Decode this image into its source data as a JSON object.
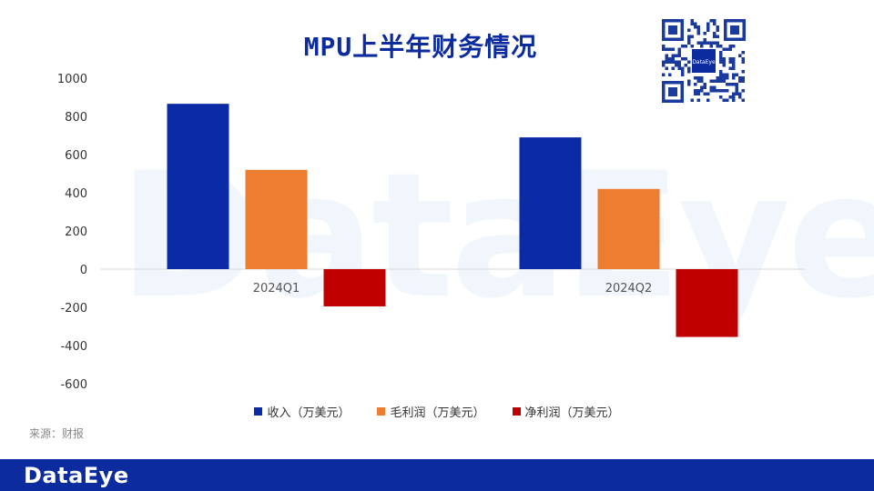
{
  "page": {
    "title": "MPU上半年财务情况",
    "source": "来源：财报",
    "brand": "DataEye",
    "qr_label": "DataEye"
  },
  "colors": {
    "revenue": "#0b2aa6",
    "gross_profit": "#ed7d31",
    "net_profit": "#c00000",
    "brand": "#0b2b9e"
  },
  "chart_data": {
    "type": "bar",
    "title": "MPU上半年财务情况",
    "categories": [
      "2024Q1",
      "2024Q2"
    ],
    "series": [
      {
        "name": "收入（万美元）",
        "values": [
          866,
          690
        ],
        "color": "#0b2aa6"
      },
      {
        "name": "毛利润（万美元）",
        "values": [
          520,
          420
        ],
        "color": "#ed7d31"
      },
      {
        "name": "净利润（万美元）",
        "values": [
          -195,
          -355
        ],
        "color": "#c00000"
      }
    ],
    "yticks": [
      "1000",
      "800",
      "600",
      "400",
      "200",
      "0",
      "-200",
      "-400",
      "-600"
    ],
    "ylim": [
      -600,
      1000
    ],
    "xlabel": "",
    "ylabel": "",
    "legend_position": "bottom",
    "grid": false
  }
}
